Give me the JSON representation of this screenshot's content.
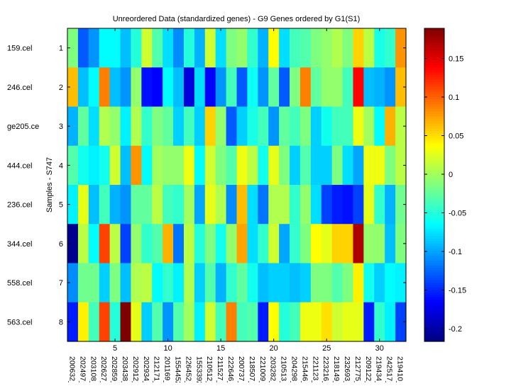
{
  "chart_data": {
    "type": "heatmap",
    "title": "Unreordered Data (standardized genes) - G9 Genes ordered by G1(S1)",
    "ylabel": "Samples - S747",
    "xlabel": "",
    "colormap": "jet",
    "clim": [
      -0.2165,
      0.189
    ],
    "colorbar_ticks": [
      0.15,
      0.1,
      0.05,
      0,
      -0.05,
      -0.1,
      -0.15,
      -0.2
    ],
    "colorbar_tick_labels": [
      "0.15",
      "0.1",
      "0.05",
      "0",
      "-0.05",
      "-0.1",
      "-0.15",
      "-0.2"
    ],
    "x_ticks": [
      5,
      10,
      15,
      20,
      25,
      30
    ],
    "x_tick_labels_numeric": [
      "5",
      "10",
      "15",
      "20",
      "25",
      "30"
    ],
    "y_ticks": [
      1,
      2,
      3,
      4,
      5,
      6,
      7,
      8
    ],
    "y_tick_labels_numeric": [
      "1",
      "2",
      "3",
      "4",
      "5",
      "6",
      "7",
      "8"
    ],
    "row_labels": [
      "159.cel",
      "246.cel",
      "ge205.ce",
      "444.cel",
      "236.cel",
      "344.cel",
      "558.cel",
      "563.cel"
    ],
    "column_labels": [
      "200632_",
      "202497_",
      "203108_",
      "202627_",
      "202859_",
      "203438_",
      "202912_",
      "202934_",
      "212171_",
      "201169_",
      "1554452",
      "226452_",
      "1553392",
      "210512_",
      "211527_",
      "222646_",
      "200737_",
      "218507_",
      "221009_",
      "203282_",
      "210513_",
      "204298_",
      "215446_",
      "221123_",
      "223216_",
      "218149_",
      "232693_",
      "212775_",
      "209122_",
      "219434_",
      "242517_",
      "219410_"
    ],
    "values": [
      [
        -0.014,
        -0.13,
        -0.107,
        -0.065,
        -0.065,
        -0.09,
        -0.05,
        0.018,
        -0.032,
        -0.077,
        -0.11,
        -0.05,
        -0.095,
        0.018,
        -0.077,
        -0.014,
        -0.006,
        -0.045,
        -0.095,
        0.037,
        -0.077,
        -0.038,
        -0.032,
        -0.014,
        -0.006,
        0.006,
        -0.014,
        0.055,
        0.01,
        -0.055,
        -0.045,
        0.08
      ],
      [
        0.063,
        -0.09,
        -0.065,
        0.088,
        -0.09,
        -0.107,
        -0.006,
        -0.16,
        -0.166,
        -0.065,
        -0.09,
        -0.18,
        -0.077,
        -0.166,
        -0.107,
        -0.038,
        -0.13,
        -0.06,
        -0.107,
        -0.026,
        -0.13,
        -0.014,
        0.088,
        -0.026,
        -0.006,
        -0.006,
        -0.038,
        0.138,
        -0.09,
        -0.095,
        -0.107,
        0.063
      ],
      [
        -0.095,
        -0.026,
        -0.077,
        0.006,
        -0.006,
        -0.07,
        0.006,
        -0.045,
        -0.014,
        -0.026,
        -0.083,
        -0.038,
        -0.083,
        0.055,
        -0.006,
        -0.13,
        -0.083,
        -0.055,
        -0.038,
        -0.107,
        -0.026,
        -0.038,
        -0.014,
        -0.083,
        -0.058,
        -0.038,
        -0.038,
        0.03,
        0,
        -0.065,
        0.068,
        0.01
      ],
      [
        -0.032,
        -0.058,
        -0.07,
        -0.058,
        0.018,
        -0.09,
        0.08,
        -0.065,
        0,
        -0.006,
        -0.006,
        0.03,
        -0.065,
        0.018,
        -0.014,
        -0.032,
        0.03,
        0.01,
        -0.058,
        0.027,
        -0.014,
        -0.083,
        -0.032,
        -0.083,
        -0.083,
        -0.014,
        -0.077,
        -0.1,
        0.03,
        0.03,
        -0.014,
        0.01
      ],
      [
        -0.07,
        0.027,
        -0.09,
        -0.038,
        -0.095,
        -0.107,
        -0.026,
        -0.026,
        0.01,
        -0.038,
        -0.045,
        0,
        -0.1,
        0.027,
        0.006,
        -0.11,
        0.063,
        -0.077,
        -0.12,
        0.006,
        0.006,
        -0.045,
        -0.006,
        -0.077,
        -0.14,
        -0.155,
        -0.16,
        -0.14,
        0.027,
        -0.045,
        -0.095,
        -0.02
      ],
      [
        -0.21,
        0.01,
        -0.065,
        0.112,
        0.01,
        -0.14,
        -0.006,
        -0.045,
        -0.032,
        0.068,
        -0.12,
        0.01,
        -0.05,
        -0.014,
        -0.058,
        -0.006,
        0.073,
        -0.077,
        -0.045,
        0.018,
        -0.1,
        -0.045,
        -0.014,
        0.037,
        0.027,
        0.055,
        0.055,
        0.17,
        -0.006,
        -0.006,
        -0.09,
        -0.014
      ],
      [
        -0.11,
        -0.02,
        -0.02,
        -0.083,
        -0.014,
        -0.09,
        0.006,
        0.01,
        -0.065,
        -0.045,
        -0.07,
        0.006,
        -0.083,
        -0.032,
        -0.095,
        -0.045,
        -0.026,
        -0.058,
        -0.09,
        -0.083,
        -0.083,
        -0.09,
        -0.083,
        -0.014,
        -0.014,
        -0.032,
        -0.014,
        0.042,
        -0.058,
        -0.083,
        -0.065,
        -0.07
      ],
      [
        -0.155,
        0.042,
        -0.038,
        0.112,
        -0.05,
        0.189,
        0.027,
        -0.083,
        -0.032,
        -0.107,
        -0.032,
        0,
        -0.07,
        0.018,
        -0.038,
        0.088,
        -0.038,
        -0.032,
        -0.155,
        0.037,
        -0.05,
        -0.038,
        0.03,
        0.03,
        0.049,
        0.018,
        0.027,
        0.027,
        -0.155,
        -0.045,
        -0.07,
        -0.14
      ]
    ]
  }
}
